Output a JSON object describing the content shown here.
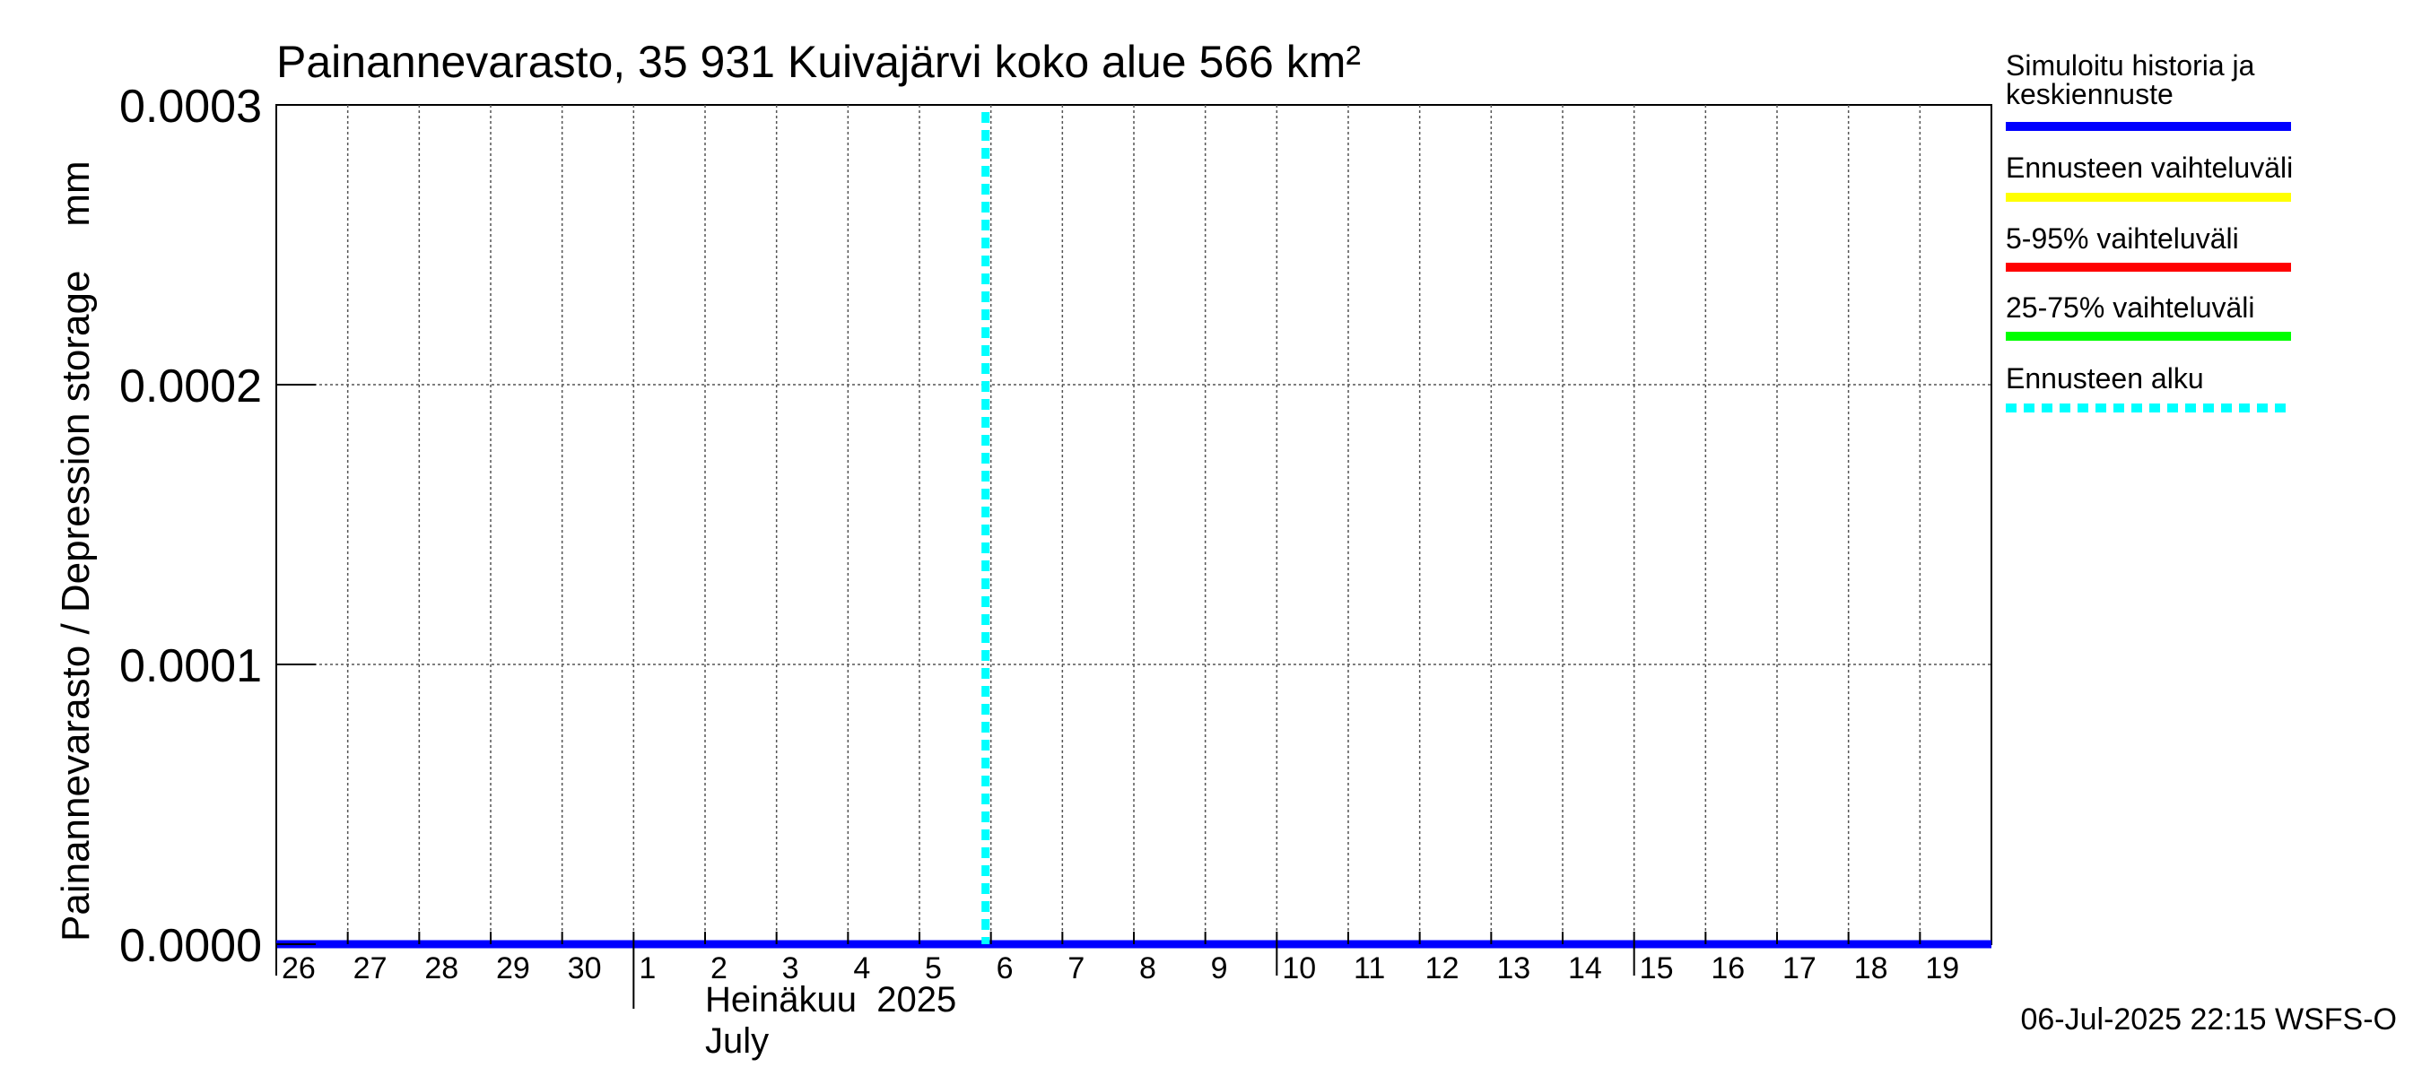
{
  "chart_data": {
    "type": "line",
    "title": "Painannevarasto, 35 931 Kuivajärvi koko alue 566 km²",
    "ylabel": "Painannevarasto / Depression storage    mm",
    "y_ticks": [
      "0.0000",
      "0.0001",
      "0.0002",
      "0.0003"
    ],
    "ylim": [
      0,
      0.0003
    ],
    "x_tick_labels": [
      "26",
      "27",
      "28",
      "29",
      "30",
      "1",
      "2",
      "3",
      "4",
      "5",
      "6",
      "7",
      "8",
      "9",
      "10",
      "11",
      "12",
      "13",
      "14",
      "15",
      "16",
      "17",
      "18",
      "19"
    ],
    "x_dates": [
      "2025-06-26",
      "2025-06-27",
      "2025-06-28",
      "2025-06-29",
      "2025-06-30",
      "2025-07-01",
      "2025-07-02",
      "2025-07-03",
      "2025-07-04",
      "2025-07-05",
      "2025-07-06",
      "2025-07-07",
      "2025-07-08",
      "2025-07-09",
      "2025-07-10",
      "2025-07-11",
      "2025-07-12",
      "2025-07-13",
      "2025-07-14",
      "2025-07-15",
      "2025-07-16",
      "2025-07-17",
      "2025-07-18",
      "2025-07-19"
    ],
    "xlim": [
      "2025-06-26",
      "2025-07-20"
    ],
    "month_label_fi": "Heinäkuu  2025",
    "month_label_en": "July",
    "series": [
      {
        "name": "Simuloitu historia ja keskiennuste",
        "color": "#0000ff",
        "x": [
          "2025-06-26",
          "2025-07-20"
        ],
        "values": [
          0,
          0
        ]
      }
    ],
    "forecast_start": "2025-07-06",
    "legend_position": "right",
    "legend": [
      {
        "label": "Simuloitu historia ja keskiennuste",
        "color": "#0000ff",
        "style": "solid"
      },
      {
        "label": "Ennusteen vaihteluväli",
        "color": "#ffff00",
        "style": "solid"
      },
      {
        "label": "5-95% vaihteluväli",
        "color": "#ff0000",
        "style": "solid"
      },
      {
        "label": "25-75% vaihteluväli",
        "color": "#00ff00",
        "style": "solid"
      },
      {
        "label": "Ennusteen alku",
        "color": "#00ffff",
        "style": "dashed"
      }
    ],
    "grid": true,
    "footer": "06-Jul-2025 22:15 WSFS-O"
  }
}
